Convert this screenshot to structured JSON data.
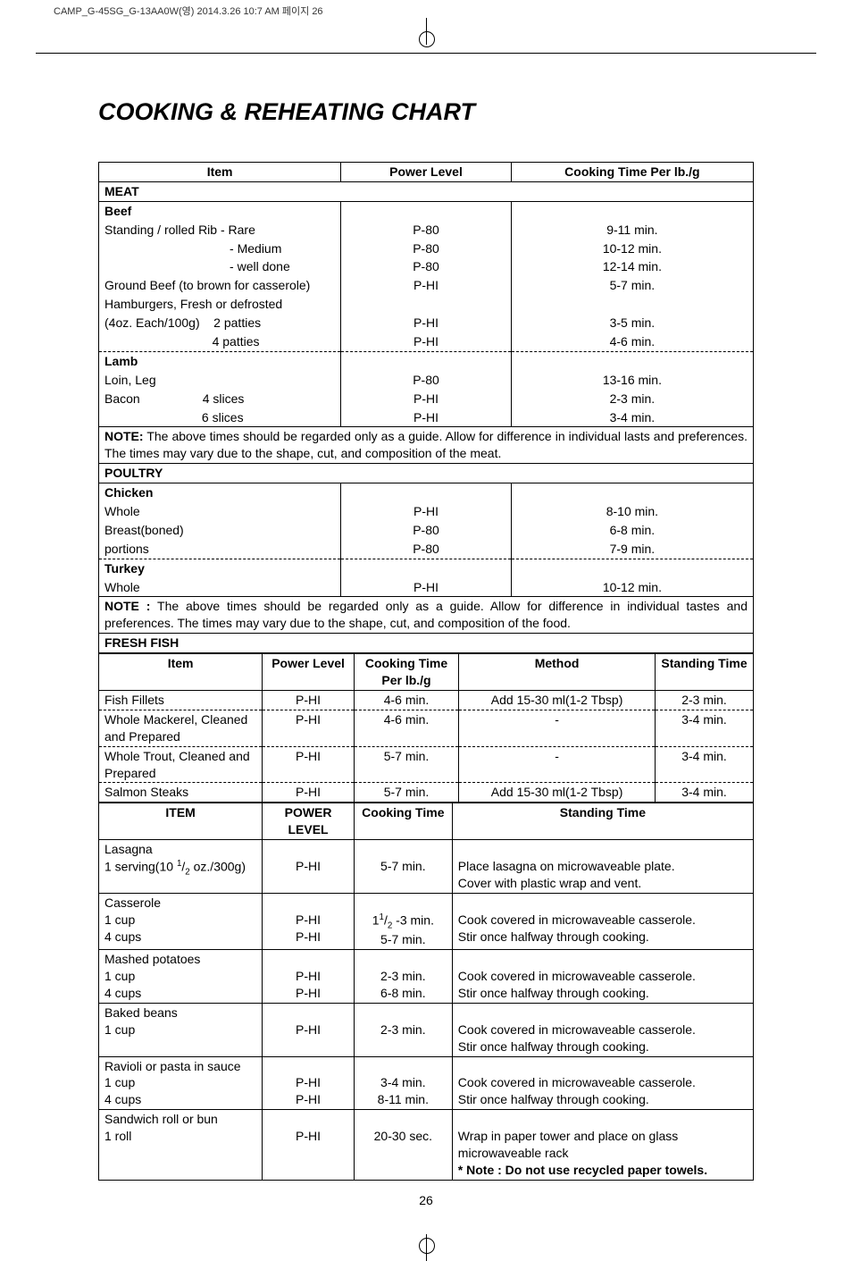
{
  "doc_header": "CAMP_G-45SG_G-13AA0W(영)  2014.3.26 10:7 AM  페이지 26",
  "title": "COOKING & REHEATING CHART",
  "page_number": "26",
  "table1": {
    "heads": [
      "Item",
      "Power Level",
      "Cooking Time Per lb./g"
    ],
    "meat_label": "MEAT",
    "beef_label": "Beef",
    "beef_rows": [
      [
        "Standing / rolled Rib - Rare",
        "P-80",
        "9-11 min."
      ],
      [
        "                                    - Medium",
        "P-80",
        "10-12 min."
      ],
      [
        "                                    - well done",
        "P-80",
        "12-14 min."
      ],
      [
        "Ground Beef (to brown for casserole)",
        "P-HI",
        "5-7 min."
      ],
      [
        "Hamburgers, Fresh or defrosted",
        "",
        ""
      ],
      [
        "(4oz. Each/100g)    2 patties",
        "P-HI",
        "3-5 min."
      ],
      [
        "                               4 patties",
        "P-HI",
        "4-6 min."
      ]
    ],
    "lamb_label": "Lamb",
    "lamb_rows": [
      [
        "Loin, Leg",
        "P-80",
        "13-16 min."
      ],
      [
        "Bacon                  4 slices",
        "P-HI",
        "2-3 min."
      ],
      [
        "                            6 slices",
        "P-HI",
        "3-4 min."
      ]
    ],
    "note1_a": "NOTE:",
    "note1_b": " The above times should be regarded only as a guide. Allow for difference in individual lasts and preferences. The times may vary due to the shape, cut, and composition of the meat.",
    "poultry_label": "POULTRY",
    "chicken_label": "Chicken",
    "chicken_rows": [
      [
        "Whole",
        "P-HI",
        "8-10 min."
      ],
      [
        "Breast(boned)",
        "P-80",
        "6-8 min."
      ],
      [
        "portions",
        "P-80",
        "7-9 min."
      ]
    ],
    "turkey_label": "Turkey",
    "turkey_rows": [
      [
        "Whole",
        "P-HI",
        "10-12 min."
      ]
    ],
    "note2_a": "NOTE :",
    "note2_b": " The above times should be regarded only as a guide. Allow for difference in individual tastes and   preferences. The times may vary due to the shape, cut, and composition of the food.",
    "freshfish_label": "FRESH FISH"
  },
  "table2": {
    "heads": [
      "Item",
      "Power Level",
      "Cooking Time Per lb./g",
      "Method",
      "Standing Time"
    ],
    "rows": [
      [
        "Fish Fillets",
        "P-HI",
        "4-6 min.",
        "Add 15-30 ml(1-2 Tbsp)",
        "2-3 min."
      ],
      [
        "Whole Mackerel, Cleaned and Prepared",
        "P-HI",
        "4-6 min.",
        "-",
        "3-4 min."
      ],
      [
        "Whole Trout, Cleaned and Prepared",
        "P-HI",
        "5-7 min.",
        "-",
        "3-4 min."
      ],
      [
        "Salmon Steaks",
        "P-HI",
        "5-7 min.",
        "Add 15-30 ml(1-2 Tbsp)",
        "3-4 min."
      ]
    ]
  },
  "table3": {
    "heads": [
      "ITEM",
      "POWER LEVEL",
      "Cooking Time",
      "Standing Time"
    ],
    "rows": [
      {
        "lines": [
          "Lasagna",
          "1 serving(10 1/2 oz./300g)"
        ],
        "power": "P-HI",
        "time": "5-7 min.",
        "method": [
          "Place lasagna on microwaveable plate.",
          "Cover with plastic wrap and vent."
        ]
      },
      {
        "lines": [
          "Casserole",
          "1 cup",
          "4 cups"
        ],
        "powers": [
          "",
          "P-HI",
          "P-HI"
        ],
        "times": [
          "",
          "11/2 -3 min.",
          "5-7 min."
        ],
        "method": [
          "Cook covered in microwaveable casserole.",
          "Stir once halfway through cooking."
        ]
      },
      {
        "lines": [
          "Mashed potatoes",
          "1 cup",
          "4 cups"
        ],
        "powers": [
          "",
          "P-HI",
          "P-HI"
        ],
        "times": [
          "",
          "2-3 min.",
          "6-8 min."
        ],
        "method": [
          "Cook covered in microwaveable casserole.",
          "Stir once halfway through cooking."
        ]
      },
      {
        "lines": [
          "Baked beans",
          "1 cup"
        ],
        "powers": [
          "",
          "P-HI"
        ],
        "times": [
          "",
          "2-3 min."
        ],
        "method": [
          "Cook covered in microwaveable casserole.",
          "Stir once halfway through cooking."
        ]
      },
      {
        "lines": [
          "Ravioli or pasta in sauce",
          "1 cup",
          "4 cups"
        ],
        "powers": [
          "",
          "P-HI",
          "P-HI"
        ],
        "times": [
          "",
          "3-4 min.",
          "8-11 min."
        ],
        "method": [
          "Cook covered in microwaveable casserole.",
          "Stir once halfway through cooking."
        ]
      },
      {
        "lines": [
          "Sandwich roll or bun",
          "1 roll"
        ],
        "powers": [
          "",
          "P-HI"
        ],
        "times": [
          "",
          "20-30 sec."
        ],
        "method": [
          "Wrap in paper tower and place on glass",
          "microwaveable rack",
          "* Note : Do not use recycled paper towels."
        ]
      }
    ]
  }
}
